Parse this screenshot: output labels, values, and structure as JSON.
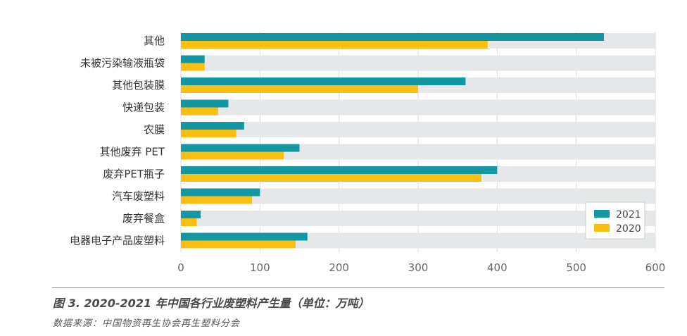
{
  "chart_data": {
    "type": "bar",
    "orientation": "horizontal",
    "title": "图 3. 2020-2021 年中国各行业废塑料产生量（单位：万吨）",
    "source": "数据来源：中国物资再生协会再生塑料分会",
    "categories": [
      "其他",
      "未被污染输液瓶袋",
      "其他包装膜",
      "快递包装",
      "农膜",
      "其他废弃 PET",
      "废弃PET瓶子",
      "汽车废塑料",
      "废弃餐盒",
      "电器电子产品废塑料"
    ],
    "series": [
      {
        "name": "2021",
        "color": "#1597a2",
        "values": [
          535,
          30,
          360,
          60,
          80,
          150,
          400,
          100,
          25,
          160
        ]
      },
      {
        "name": "2020",
        "color": "#f9bf12",
        "values": [
          388,
          30,
          300,
          47,
          70,
          130,
          380,
          90,
          20,
          145
        ]
      }
    ],
    "xlim": [
      0,
      600
    ],
    "xticks": [
      0,
      100,
      200,
      300,
      400,
      500,
      600
    ],
    "xticklabels": [
      "0",
      "100",
      "200",
      "300",
      "400",
      "500",
      "600"
    ],
    "track_color": "#e6e7e9",
    "grid": true,
    "legend_position": "bottom-right"
  }
}
